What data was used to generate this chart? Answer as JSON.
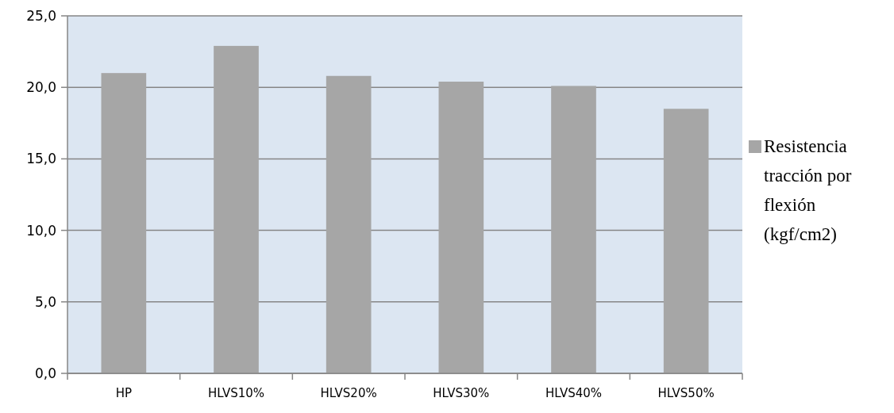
{
  "chart_data": {
    "type": "bar",
    "categories": [
      "HP",
      "HLVS10%",
      "HLVS20%",
      "HLVS30%",
      "HLVS40%",
      "HLVS50%"
    ],
    "series": [
      {
        "name": "Resistencia tracción por flexión (kgf/cm2)",
        "color": "#a6a6a6",
        "values": [
          21.0,
          22.9,
          20.8,
          20.4,
          20.1,
          18.5
        ]
      }
    ],
    "ylim": [
      0,
      25
    ],
    "yticks": [
      {
        "value": 0,
        "label": "0,0"
      },
      {
        "value": 5,
        "label": "5,0"
      },
      {
        "value": 10,
        "label": "10,0"
      },
      {
        "value": 15,
        "label": "15,0"
      },
      {
        "value": 20,
        "label": "20,0"
      },
      {
        "value": 25,
        "label": "25,0"
      }
    ],
    "grid": "y",
    "legend": "right"
  }
}
